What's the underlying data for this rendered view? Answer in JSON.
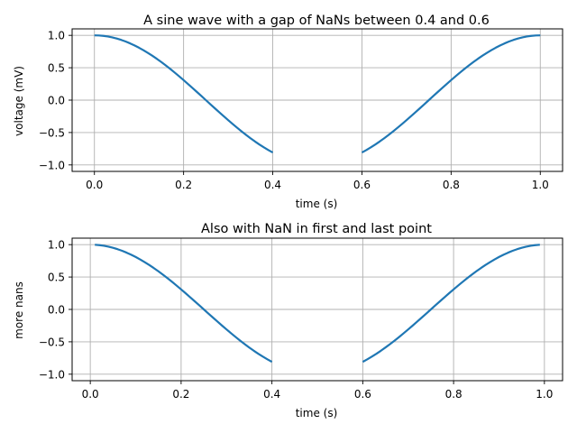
{
  "chart_data": [
    {
      "type": "line",
      "title": "A sine wave with a gap of NaNs between 0.4 and 0.6",
      "xlabel": "time (s)",
      "ylabel": "voltage (mV)",
      "xlim": [
        -0.05,
        1.05
      ],
      "ylim": [
        -1.1,
        1.1
      ],
      "xticks": [
        0.0,
        0.2,
        0.4,
        0.6,
        0.8,
        1.0
      ],
      "xtick_labels": [
        "0.0",
        "0.2",
        "0.4",
        "0.6",
        "0.8",
        "1.0"
      ],
      "yticks": [
        1.0,
        0.5,
        0.0,
        -0.5,
        -1.0
      ],
      "ytick_labels": [
        "1.0",
        "0.5",
        "0.0",
        "−0.5",
        "−1.0"
      ],
      "grid": true,
      "color": "#1f77b4",
      "series": [
        {
          "function": "cos(2*pi*t)",
          "t_start": 0.0,
          "t_end": 1.0,
          "t_step": 0.01,
          "nan_ranges": [
            [
              0.4,
              0.6
            ]
          ]
        }
      ]
    },
    {
      "type": "line",
      "title": "Also with NaN in first and last point",
      "xlabel": "time (s)",
      "ylabel": "more nans",
      "xlim": [
        -0.04,
        1.04
      ],
      "ylim": [
        -1.1,
        1.1
      ],
      "xticks": [
        0.0,
        0.2,
        0.4,
        0.6,
        0.8,
        1.0
      ],
      "xtick_labels": [
        "0.0",
        "0.2",
        "0.4",
        "0.6",
        "0.8",
        "1.0"
      ],
      "yticks": [
        1.0,
        0.5,
        0.0,
        -0.5,
        -1.0
      ],
      "ytick_labels": [
        "1.0",
        "0.5",
        "0.0",
        "−0.5",
        "−1.0"
      ],
      "grid": true,
      "color": "#1f77b4",
      "series": [
        {
          "function": "cos(2*pi*t)",
          "t_start": 0.01,
          "t_end": 0.99,
          "t_step": 0.01,
          "nan_ranges": [
            [
              0.4,
              0.6
            ]
          ]
        }
      ]
    }
  ]
}
